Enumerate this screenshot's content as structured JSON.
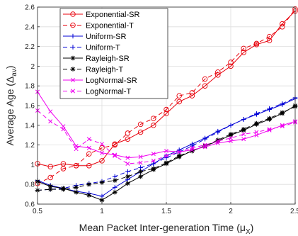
{
  "chart_data": {
    "type": "line",
    "xlabel": "Mean Packet Inter-generation Time (μ",
    "xlabel_sub": "X",
    "xlabel_end": ")",
    "ylabel": "Average Age (Δ",
    "ylabel_sub": "av",
    "ylabel_end": ")",
    "xlim": [
      0.5,
      2.5
    ],
    "ylim": [
      0.6,
      2.6
    ],
    "xticks": [
      0.5,
      1,
      1.5,
      2,
      2.5
    ],
    "xtick_labels": [
      "0.5",
      "1",
      "1.5",
      "2",
      "2.5"
    ],
    "yticks": [
      0.6,
      0.8,
      1.0,
      1.2,
      1.4,
      1.6,
      1.8,
      2.0,
      2.2,
      2.4,
      2.6
    ],
    "ytick_labels": [
      "0.6",
      "0.8",
      "1",
      "1.2",
      "1.4",
      "1.6",
      "1.8",
      "2",
      "2.2",
      "2.4",
      "2.6"
    ],
    "grid": true,
    "legend_position": "top-left",
    "x": [
      0.5,
      0.6,
      0.7,
      0.8,
      0.9,
      1.0,
      1.1,
      1.2,
      1.3,
      1.4,
      1.5,
      1.6,
      1.7,
      1.8,
      1.9,
      2.0,
      2.1,
      2.2,
      2.3,
      2.4,
      2.5
    ],
    "series": [
      {
        "name": "Exponential-SR",
        "color": "#e8000b",
        "dash": "solid",
        "marker": "circle",
        "values": [
          1.01,
          0.98,
          1.01,
          0.99,
          0.99,
          1.04,
          1.21,
          1.26,
          1.33,
          1.4,
          1.52,
          1.64,
          1.7,
          1.8,
          1.91,
          2.0,
          2.14,
          2.22,
          2.26,
          2.43,
          2.56
        ]
      },
      {
        "name": "Exponential-T",
        "color": "#e8000b",
        "dash": "dashed",
        "marker": "circle",
        "values": [
          0.81,
          0.87,
          0.96,
          0.99,
          1.11,
          1.17,
          1.2,
          1.32,
          1.41,
          1.47,
          1.56,
          1.7,
          1.73,
          1.87,
          1.94,
          2.04,
          2.18,
          2.23,
          2.3,
          2.4,
          2.58
        ]
      },
      {
        "name": "Uniform-SR",
        "color": "#0000d6",
        "dash": "solid",
        "marker": "plus",
        "values": [
          0.84,
          0.79,
          0.76,
          0.73,
          0.71,
          0.68,
          0.77,
          0.85,
          0.93,
          1.01,
          1.09,
          1.15,
          1.21,
          1.27,
          1.34,
          1.4,
          1.46,
          1.51,
          1.56,
          1.61,
          1.67
        ]
      },
      {
        "name": "Uniform-T",
        "color": "#0000d6",
        "dash": "dashed",
        "marker": "plus",
        "values": [
          0.74,
          0.75,
          0.76,
          0.79,
          0.81,
          0.83,
          0.88,
          0.93,
          0.97,
          1.01,
          1.07,
          1.13,
          1.19,
          1.26,
          1.33,
          1.4,
          1.46,
          1.52,
          1.57,
          1.62,
          1.68
        ]
      },
      {
        "name": "Rayleigh-SR",
        "color": "#000000",
        "dash": "solid",
        "marker": "star",
        "values": [
          0.83,
          0.78,
          0.76,
          0.72,
          0.69,
          0.64,
          0.72,
          0.81,
          0.88,
          0.95,
          1.01,
          1.08,
          1.14,
          1.19,
          1.24,
          1.3,
          1.35,
          1.41,
          1.46,
          1.52,
          1.6
        ]
      },
      {
        "name": "Rayleigh-T",
        "color": "#000000",
        "dash": "dashed",
        "marker": "star",
        "values": [
          0.74,
          0.75,
          0.75,
          0.77,
          0.8,
          0.82,
          0.84,
          0.88,
          0.93,
          0.96,
          1.02,
          1.09,
          1.14,
          1.19,
          1.25,
          1.31,
          1.36,
          1.42,
          1.47,
          1.53,
          1.59
        ]
      },
      {
        "name": "LogNormal-SR",
        "color": "#f000f0",
        "dash": "solid",
        "marker": "x",
        "values": [
          1.74,
          1.54,
          1.39,
          1.19,
          1.17,
          1.12,
          1.1,
          1.07,
          1.08,
          1.11,
          1.14,
          1.13,
          1.15,
          1.18,
          1.22,
          1.24,
          1.26,
          1.3,
          1.35,
          1.4,
          1.44
        ]
      },
      {
        "name": "LogNormal-T",
        "color": "#f000f0",
        "dash": "dashed",
        "marker": "x",
        "values": [
          1.55,
          1.44,
          1.36,
          1.16,
          1.26,
          1.21,
          1.09,
          1.01,
          1.02,
          1.04,
          1.09,
          1.13,
          1.17,
          1.2,
          1.24,
          1.27,
          1.31,
          1.33,
          1.36,
          1.39,
          1.43
        ]
      }
    ]
  }
}
